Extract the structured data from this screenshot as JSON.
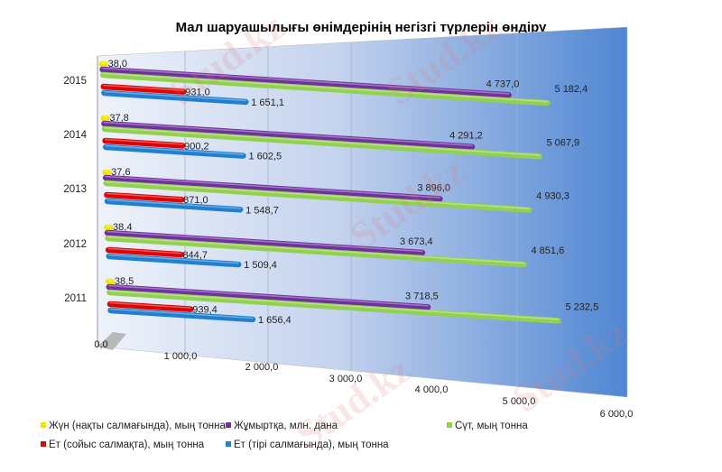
{
  "chart_data": {
    "type": "bar",
    "orientation": "horizontal",
    "style": "3d-cylinder",
    "title": "Мал шаруашылығы өнімдерінің негізгі түрлерін өндіру",
    "categories": [
      "2015",
      "2014",
      "2013",
      "2012",
      "2011"
    ],
    "xlim": [
      0,
      6000
    ],
    "xticks": [
      "0,0",
      "1 000,0",
      "2 000,0",
      "3 000,0",
      "4 000,0",
      "5 000,0",
      "6 000,0"
    ],
    "grid": true,
    "legend_position": "bottom",
    "series": [
      {
        "name": "Жүн (нақты салмағында), мың тонна",
        "color": "#f2e600",
        "values": [
          38.0,
          37.8,
          37.6,
          38.4,
          38.5
        ],
        "labels": [
          "38,0",
          "37,8",
          "37,6",
          "38,4",
          "38,5"
        ]
      },
      {
        "name": "Жұмыртқа, млн. дана",
        "color": "#7030a0",
        "values": [
          4737.0,
          4291.2,
          3896.0,
          3673.4,
          3718.5
        ],
        "labels": [
          "4 737,0",
          "4 291,2",
          "3 896,0",
          "3 673,4",
          "3 718,5"
        ]
      },
      {
        "name": "Сүт, мың тонна",
        "color": "#92d050",
        "values": [
          5182.4,
          5067.9,
          4930.3,
          4851.6,
          5232.5
        ],
        "labels": [
          "5 182,4",
          "5 067,9",
          "4 930,3",
          "4 851,6",
          "5 232,5"
        ]
      },
      {
        "name": "Ет (сойыс салмақта), мың тонна",
        "color": "#e00000",
        "values": [
          931.0,
          900.2,
          871.0,
          844.7,
          939.4
        ],
        "labels": [
          "931,0",
          "900,2",
          "871,0",
          "844,7",
          "939,4"
        ]
      },
      {
        "name": "Ет (тірі салмағында), мың тонна",
        "color": "#1f7fd0",
        "values": [
          1651.1,
          1602.5,
          1548.7,
          1509.4,
          1656.4
        ],
        "labels": [
          "1 651,1",
          "1 602,5",
          "1 548,7",
          "1 509,4",
          "1 656,4"
        ]
      }
    ]
  },
  "watermark": "Stud.kz"
}
